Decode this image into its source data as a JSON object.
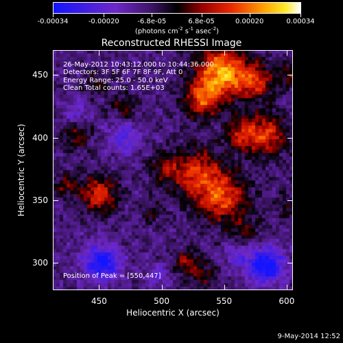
{
  "chart_data": {
    "type": "heatmap",
    "title": "Reconstructed RHESSI Image",
    "xlabel": "Heliocentric X (arcsec)",
    "ylabel": "Heliocentric Y (arcsec)",
    "xlim": [
      413,
      605
    ],
    "ylim": [
      278,
      470
    ],
    "x_ticks": [
      450,
      500,
      550,
      600
    ],
    "y_ticks": [
      300,
      350,
      400,
      450
    ],
    "colorbar": {
      "ticks": [
        "-0.00034",
        "-0.00020",
        "-6.8e-05",
        "6.8e-05",
        "0.00020",
        "0.00034"
      ],
      "range": [
        -0.00034,
        0.00034
      ],
      "unit_main": "(photons cm",
      "unit_exp1": "-2",
      "unit_s": " s",
      "unit_exp2": "-1",
      "unit_asec": " asec",
      "unit_exp3": "-2",
      "unit_close": ")"
    },
    "annotations": {
      "time": "26-May-2012 10:43:12.000 to 10:44:36.000",
      "detectors": "Detectors: 3F 5F 6F 7F 8F 9F, Att 0",
      "energy": "Energy Range: 25.0 - 50.0 keV",
      "clean": "Clean     Total counts: 1.65E+03",
      "peak": "Position of Peak = [550,447]"
    },
    "bright_regions": [
      {
        "x": 548,
        "y": 452,
        "sigma": 14,
        "value": 0.00034
      },
      {
        "x": 532,
        "y": 430,
        "sigma": 10,
        "value": 0.00022
      },
      {
        "x": 575,
        "y": 445,
        "sigma": 10,
        "value": 0.0002
      },
      {
        "x": 583,
        "y": 402,
        "sigma": 12,
        "value": 0.00022
      },
      {
        "x": 563,
        "y": 403,
        "sigma": 9,
        "value": 0.00016
      },
      {
        "x": 548,
        "y": 352,
        "sigma": 14,
        "value": 0.00024
      },
      {
        "x": 528,
        "y": 372,
        "sigma": 14,
        "value": 0.0002
      },
      {
        "x": 503,
        "y": 375,
        "sigma": 9,
        "value": 0.00012
      },
      {
        "x": 450,
        "y": 355,
        "sigma": 10,
        "value": 0.00022
      },
      {
        "x": 423,
        "y": 362,
        "sigma": 7,
        "value": 0.00012
      },
      {
        "x": 432,
        "y": 402,
        "sigma": 8,
        "value": 0.00014
      },
      {
        "x": 470,
        "y": 425,
        "sigma": 8,
        "value": 0.0001
      },
      {
        "x": 447,
        "y": 442,
        "sigma": 7,
        "value": 8e-05
      },
      {
        "x": 520,
        "y": 300,
        "sigma": 8,
        "value": 0.00014
      },
      {
        "x": 535,
        "y": 290,
        "sigma": 7,
        "value": 0.0001
      },
      {
        "x": 567,
        "y": 325,
        "sigma": 8,
        "value": 0.0001
      },
      {
        "x": 602,
        "y": 450,
        "sigma": 7,
        "value": 0.0001
      },
      {
        "x": 600,
        "y": 345,
        "sigma": 7,
        "value": 8e-05
      },
      {
        "x": 493,
        "y": 340,
        "sigma": 6,
        "value": 8e-05
      }
    ],
    "dark_regions": [
      {
        "x": 452,
        "y": 300,
        "sigma": 10,
        "value": -0.00026
      },
      {
        "x": 583,
        "y": 298,
        "sigma": 10,
        "value": -0.00028
      },
      {
        "x": 470,
        "y": 400,
        "sigma": 9,
        "value": -0.00014
      },
      {
        "x": 432,
        "y": 420,
        "sigma": 7,
        "value": -0.0001
      },
      {
        "x": 498,
        "y": 290,
        "sigma": 7,
        "value": -0.0001
      },
      {
        "x": 560,
        "y": 305,
        "sigma": 7,
        "value": -0.0001
      }
    ]
  },
  "footer": {
    "date": "9-May-2014 12:52"
  },
  "colors": {
    "background": "#000000",
    "axes": "#ffffff"
  }
}
